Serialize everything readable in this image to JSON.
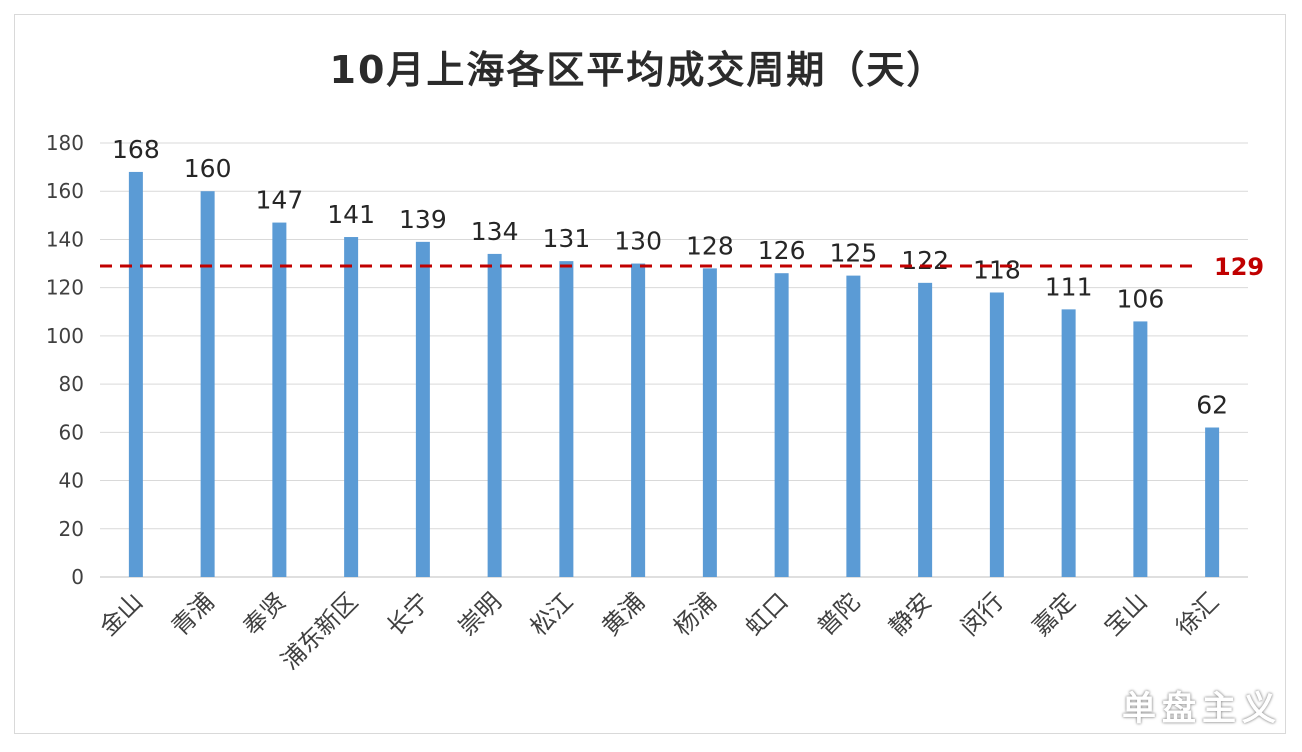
{
  "chart_data": {
    "type": "bar",
    "title": "10月上海各区平均成交周期（天）",
    "categories": [
      "金山",
      "青浦",
      "奉贤",
      "浦东新区",
      "长宁",
      "崇明",
      "松江",
      "黄浦",
      "杨浦",
      "虹口",
      "普陀",
      "静安",
      "闵行",
      "嘉定",
      "宝山",
      "徐汇"
    ],
    "values": [
      168,
      160,
      147,
      141,
      139,
      134,
      131,
      130,
      128,
      126,
      125,
      122,
      118,
      111,
      106,
      62
    ],
    "ylim": [
      0,
      180
    ],
    "yticks": [
      0,
      20,
      40,
      60,
      80,
      100,
      120,
      140,
      160,
      180
    ],
    "grid": true,
    "reference_line": {
      "value": 129,
      "label": "129",
      "color": "#c00000"
    },
    "bar_color": "#5b9bd5"
  },
  "watermark": "单盘主义"
}
